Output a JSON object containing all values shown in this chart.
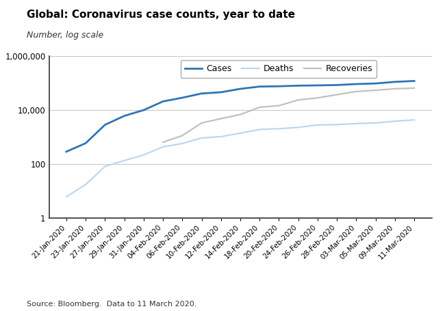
{
  "title": "Global: Coronavirus case counts, year to date",
  "subtitle": "Number, log scale",
  "source_text": "Source: Bloomberg.  Data to 11 March 2020.",
  "x_labels": [
    "21-Jan-2020",
    "23-Jan-2020",
    "27-Jan-2020",
    "29-Jan-2020",
    "31-Jan-2020",
    "04-Feb-2020",
    "06-Feb-2020",
    "10-Feb-2020",
    "12-Feb-2020",
    "14-Feb-2020",
    "18-Feb-2020",
    "20-Feb-2020",
    "24-Feb-2020",
    "26-Feb-2020",
    "28-Feb-2020",
    "03-Mar-2020",
    "05-Mar-2020",
    "09-Mar-2020",
    "11-Mar-2020"
  ],
  "cases": [
    282,
    581,
    2798,
    5994,
    9826,
    20630,
    28276,
    40553,
    45171,
    60374,
    73332,
    75204,
    79331,
    81109,
    83652,
    90869,
    95748,
    109578,
    118326
  ],
  "deaths": [
    6,
    17,
    80,
    132,
    213,
    427,
    565,
    910,
    1018,
    1369,
    1873,
    2009,
    2247,
    2763,
    2858,
    3110,
    3281,
    3802,
    4262
  ],
  "recoveries": [
    null,
    null,
    null,
    null,
    null,
    632,
    1115,
    3281,
    4740,
    6723,
    12583,
    14352,
    23394,
    27905,
    36711,
    48228,
    53524,
    60694,
    64442
  ],
  "cases_color": "#2E75B6",
  "deaths_color": "#BDD7EE",
  "recoveries_color": "#C0C0C0",
  "ylim_min": 1,
  "ylim_max": 1000000,
  "yticks": [
    1,
    100,
    10000,
    1000000
  ],
  "ytick_labels": [
    "1",
    "100",
    "10,000",
    "1,000,000"
  ],
  "grid_ticks": [
    1,
    100,
    10000,
    1000000
  ],
  "legend_labels": [
    "Cases",
    "Deaths",
    "Recoveries"
  ],
  "title_fontsize": 11,
  "subtitle_fontsize": 9,
  "source_fontsize": 8,
  "background_color": "#ffffff"
}
